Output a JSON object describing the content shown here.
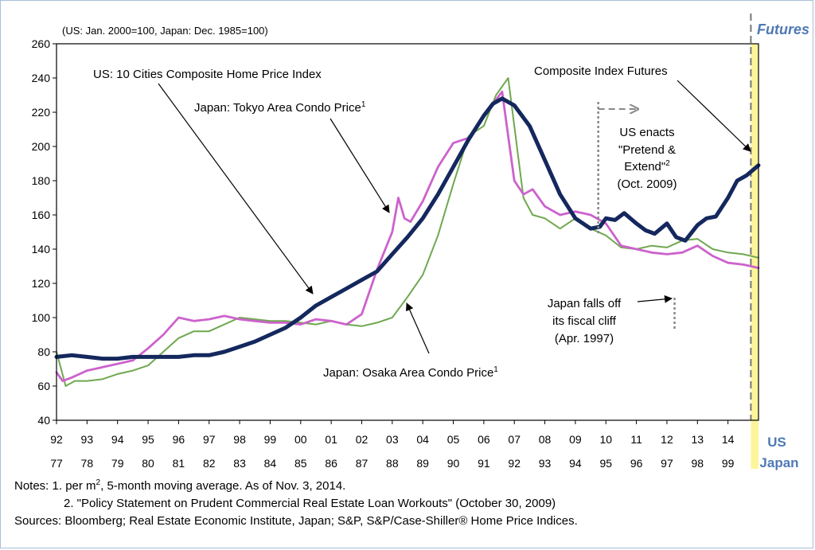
{
  "chart_data": {
    "type": "line",
    "unit_note": "(US: Jan. 2000=100, Japan: Dec. 1985=100)",
    "ylim": [
      40,
      260
    ],
    "yticks": [
      40,
      60,
      80,
      100,
      120,
      140,
      160,
      180,
      200,
      220,
      240,
      260
    ],
    "x_top_labels": [
      "92",
      "93",
      "94",
      "95",
      "96",
      "97",
      "98",
      "99",
      "00",
      "01",
      "02",
      "03",
      "04",
      "05",
      "06",
      "07",
      "08",
      "09",
      "10",
      "11",
      "12",
      "13",
      "14"
    ],
    "x_bottom_labels": [
      "77",
      "78",
      "79",
      "80",
      "81",
      "82",
      "83",
      "84",
      "85",
      "86",
      "87",
      "88",
      "89",
      "90",
      "91",
      "92",
      "93",
      "94",
      "95",
      "96",
      "97",
      "98",
      "99"
    ],
    "x_top_axis_name": "US",
    "x_bottom_axis_name": "Japan",
    "futures_label": "Futures",
    "series": [
      {
        "name": "US: 10 Cities Composite Home Price Index",
        "color": "#14285e",
        "x": [
          92.0,
          92.5,
          93.0,
          93.5,
          94.0,
          94.5,
          95.0,
          95.5,
          96.0,
          96.5,
          97.0,
          97.5,
          98.0,
          98.5,
          99.0,
          99.5,
          100.0,
          100.5,
          101.0,
          101.5,
          102.0,
          102.5,
          103.0,
          103.5,
          104.0,
          104.5,
          105.0,
          105.5,
          106.0,
          106.3,
          106.6,
          107.0,
          107.5,
          108.0,
          108.5,
          109.0,
          109.5,
          109.8,
          110.0,
          110.3,
          110.6,
          111.0,
          111.3,
          111.6,
          112.0,
          112.3,
          112.6,
          113.0,
          113.3,
          113.6,
          114.0,
          114.3,
          114.6,
          115.0
        ],
        "values": [
          77,
          78,
          77,
          76,
          76,
          77,
          77,
          77,
          77,
          78,
          78,
          80,
          83,
          86,
          90,
          94,
          100,
          107,
          112,
          117,
          122,
          127,
          137,
          147,
          158,
          172,
          188,
          204,
          218,
          225,
          228,
          224,
          212,
          192,
          172,
          158,
          152,
          153,
          158,
          157,
          161,
          155,
          151,
          149,
          155,
          147,
          145,
          154,
          158,
          159,
          170,
          180,
          183,
          189
        ]
      },
      {
        "name": "Japan: Tokyo Area Condo Price",
        "superscript": "1",
        "color": "#cc62cc",
        "x": [
          92.0,
          92.2,
          92.5,
          93.0,
          93.5,
          94.0,
          94.5,
          95.0,
          95.5,
          96.0,
          96.5,
          97.0,
          97.5,
          98.0,
          98.5,
          99.0,
          99.5,
          100.0,
          100.5,
          101.0,
          101.5,
          102.0,
          102.5,
          103.0,
          103.2,
          103.4,
          103.6,
          104.0,
          104.5,
          105.0,
          105.5,
          106.0,
          106.3,
          106.6,
          107.0,
          107.3,
          107.6,
          108.0,
          108.5,
          109.0,
          109.5,
          110.0,
          110.5,
          111.0,
          111.5,
          112.0,
          112.5,
          113.0,
          113.5,
          114.0,
          114.5,
          115.0
        ],
        "values": [
          68,
          63,
          65,
          69,
          71,
          73,
          75,
          82,
          90,
          100,
          98,
          99,
          101,
          99,
          98,
          97,
          97,
          96,
          99,
          98,
          96,
          102,
          128,
          150,
          170,
          158,
          156,
          168,
          188,
          202,
          205,
          218,
          225,
          232,
          180,
          172,
          175,
          165,
          160,
          162,
          160,
          155,
          142,
          140,
          138,
          137,
          138,
          142,
          136,
          132,
          131,
          129
        ]
      },
      {
        "name": "Japan: Osaka Area Condo Price",
        "superscript": "1",
        "color": "#6fa84f",
        "x": [
          92.0,
          92.3,
          92.6,
          93.0,
          93.5,
          94.0,
          94.5,
          95.0,
          95.5,
          96.0,
          96.5,
          97.0,
          97.5,
          98.0,
          98.5,
          99.0,
          99.5,
          100.0,
          100.5,
          101.0,
          101.5,
          102.0,
          102.5,
          103.0,
          103.5,
          104.0,
          104.5,
          105.0,
          105.5,
          106.0,
          106.4,
          106.8,
          107.0,
          107.3,
          107.6,
          108.0,
          108.5,
          109.0,
          109.5,
          110.0,
          110.5,
          111.0,
          111.5,
          112.0,
          112.5,
          113.0,
          113.5,
          114.0,
          114.5,
          115.0
        ],
        "values": [
          80,
          60,
          63,
          63,
          64,
          67,
          69,
          72,
          80,
          88,
          92,
          92,
          96,
          100,
          99,
          98,
          98,
          97,
          96,
          98,
          96,
          95,
          97,
          100,
          112,
          125,
          148,
          178,
          206,
          212,
          230,
          240,
          212,
          170,
          160,
          158,
          152,
          158,
          152,
          148,
          141,
          140,
          142,
          141,
          145,
          146,
          140,
          138,
          137,
          135
        ]
      }
    ],
    "annotations": {
      "us_label": "US: 10 Cities  Composite Home Price Index",
      "tokyo_label": "Japan: Tokyo Area Condo Price",
      "tokyo_sup": "1",
      "osaka_label": "Japan: Osaka Area Condo Price",
      "osaka_sup": "1",
      "futures_label": "Composite Index Futures",
      "pretend_lines": [
        "US enacts",
        "\"Pretend &",
        "Extend\"",
        "(Oct. 2009)"
      ],
      "pretend_sup": "2",
      "fiscal_lines": [
        "Japan falls off",
        "its fiscal cliff",
        "(Apr. 1997)"
      ],
      "pretend_x": 109.75,
      "fiscal_x": 112.25,
      "futures_start_x": 114.75
    }
  },
  "notes": {
    "note1_prefix": "Notes: 1. per m",
    "note1_sup": "2",
    "note1_suffix": ", 5-month moving average. As of Nov. 3, 2014.",
    "note2": "2.  \"Policy Statement on Prudent Commercial Real Estate Loan Workouts\" (October 30, 2009)",
    "sources": "Sources: Bloomberg; Real Estate Economic Institute, Japan; S&P, S&P/Case-Shiller® Home Price Indices."
  }
}
